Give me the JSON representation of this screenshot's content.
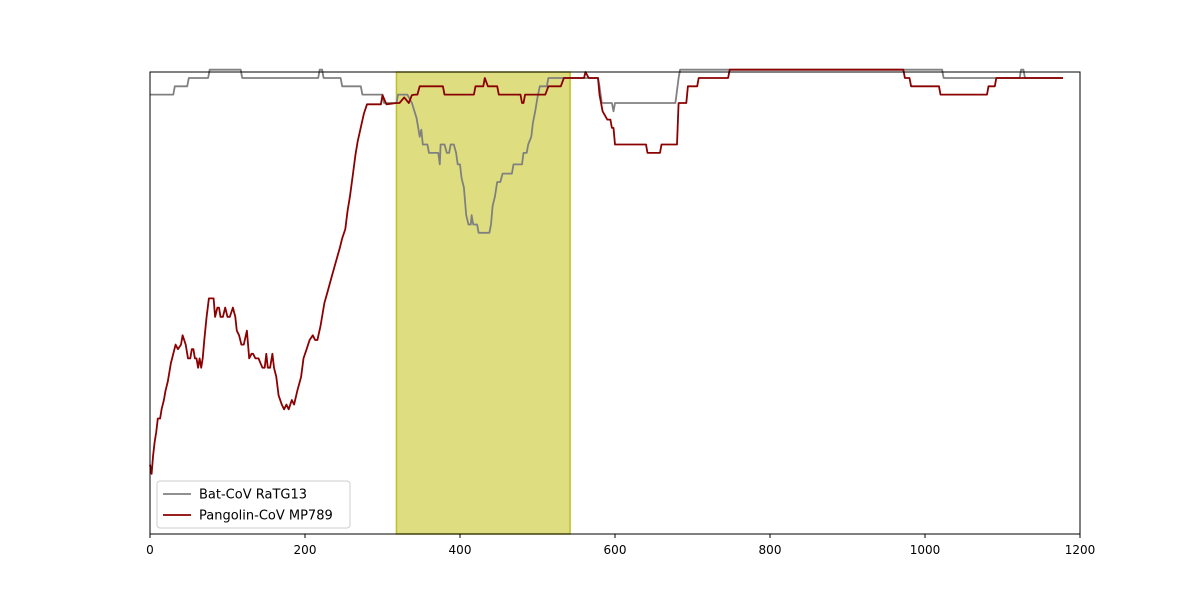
{
  "chart_data": {
    "type": "line",
    "title": "",
    "xlabel": "",
    "ylabel": "",
    "xlim": [
      0,
      1200
    ],
    "ylim": [
      0,
      1
    ],
    "xticks": [
      0,
      200,
      400,
      600,
      800,
      1000,
      1200
    ],
    "yticks_visible": false,
    "grid": false,
    "legend_position": "lower-left",
    "highlight": {
      "x_start": 318,
      "x_end": 542,
      "color": "#dede80",
      "edge_color": "#bfbf2a"
    },
    "series": [
      {
        "name": "Bat-CoV RaTG13",
        "color": "#808080",
        "points": [
          [
            0,
            0.951
          ],
          [
            30,
            0.951
          ],
          [
            32,
            0.969
          ],
          [
            48,
            0.969
          ],
          [
            50,
            0.987
          ],
          [
            75,
            0.987
          ],
          [
            77,
            1.005
          ],
          [
            117,
            1.005
          ],
          [
            119,
            0.987
          ],
          [
            217,
            0.987
          ],
          [
            219,
            1.005
          ],
          [
            222,
            1.005
          ],
          [
            224,
            0.987
          ],
          [
            246,
            0.987
          ],
          [
            248,
            0.969
          ],
          [
            272,
            0.969
          ],
          [
            274,
            0.951
          ],
          [
            300,
            0.951
          ],
          [
            302,
            0.933
          ],
          [
            318,
            0.933
          ],
          [
            320,
            0.951
          ],
          [
            332,
            0.951
          ],
          [
            338,
            0.933
          ],
          [
            344,
            0.9
          ],
          [
            348,
            0.86
          ],
          [
            350,
            0.875
          ],
          [
            352,
            0.843
          ],
          [
            358,
            0.843
          ],
          [
            360,
            0.825
          ],
          [
            368,
            0.825
          ],
          [
            372,
            0.825
          ],
          [
            374,
            0.8
          ],
          [
            375,
            0.843
          ],
          [
            378,
            0.843
          ],
          [
            380,
            0.843
          ],
          [
            383,
            0.825
          ],
          [
            386,
            0.825
          ],
          [
            388,
            0.843
          ],
          [
            392,
            0.843
          ],
          [
            395,
            0.825
          ],
          [
            397,
            0.8
          ],
          [
            400,
            0.8
          ],
          [
            402,
            0.77
          ],
          [
            405,
            0.75
          ],
          [
            408,
            0.69
          ],
          [
            411,
            0.67
          ],
          [
            414,
            0.67
          ],
          [
            415,
            0.69
          ],
          [
            417,
            0.67
          ],
          [
            420,
            0.67
          ],
          [
            422,
            0.67
          ],
          [
            424,
            0.652
          ],
          [
            438,
            0.652
          ],
          [
            440,
            0.67
          ],
          [
            442,
            0.71
          ],
          [
            445,
            0.73
          ],
          [
            448,
            0.762
          ],
          [
            452,
            0.762
          ],
          [
            455,
            0.78
          ],
          [
            460,
            0.78
          ],
          [
            463,
            0.78
          ],
          [
            465,
            0.78
          ],
          [
            467,
            0.78
          ],
          [
            469,
            0.8
          ],
          [
            480,
            0.8
          ],
          [
            482,
            0.825
          ],
          [
            486,
            0.825
          ],
          [
            488,
            0.843
          ],
          [
            492,
            0.86
          ],
          [
            494,
            0.89
          ],
          [
            497,
            0.915
          ],
          [
            500,
            0.945
          ],
          [
            503,
            0.969
          ],
          [
            512,
            0.969
          ],
          [
            514,
            0.987
          ],
          [
            560,
            0.987
          ],
          [
            578,
            0.987
          ],
          [
            580,
            0.969
          ],
          [
            583,
            0.933
          ],
          [
            596,
            0.933
          ],
          [
            598,
            0.915
          ],
          [
            600,
            0.933
          ],
          [
            640,
            0.933
          ],
          [
            660,
            0.933
          ],
          [
            678,
            0.933
          ],
          [
            682,
            0.987
          ],
          [
            684,
            1.005
          ],
          [
            1022,
            1.005
          ],
          [
            1024,
            0.987
          ],
          [
            1122,
            0.987
          ],
          [
            1124,
            1.005
          ],
          [
            1127,
            1.005
          ],
          [
            1129,
            0.987
          ],
          [
            1178,
            0.987
          ]
        ]
      },
      {
        "name": "Pangolin-CoV MP789",
        "color": "#8b0000",
        "points": [
          [
            0,
            0.15
          ],
          [
            2,
            0.13
          ],
          [
            4,
            0.17
          ],
          [
            6,
            0.2
          ],
          [
            8,
            0.22
          ],
          [
            10,
            0.25
          ],
          [
            13,
            0.25
          ],
          [
            15,
            0.27
          ],
          [
            18,
            0.29
          ],
          [
            20,
            0.31
          ],
          [
            23,
            0.33
          ],
          [
            27,
            0.37
          ],
          [
            33,
            0.41
          ],
          [
            36,
            0.4
          ],
          [
            40,
            0.41
          ],
          [
            42,
            0.43
          ],
          [
            46,
            0.41
          ],
          [
            49,
            0.38
          ],
          [
            52,
            0.38
          ],
          [
            54,
            0.4
          ],
          [
            56,
            0.4
          ],
          [
            58,
            0.38
          ],
          [
            60,
            0.38
          ],
          [
            62,
            0.36
          ],
          [
            64,
            0.38
          ],
          [
            66,
            0.36
          ],
          [
            68,
            0.38
          ],
          [
            70,
            0.42
          ],
          [
            73,
            0.47
          ],
          [
            76,
            0.51
          ],
          [
            80,
            0.51
          ],
          [
            82,
            0.51
          ],
          [
            84,
            0.47
          ],
          [
            87,
            0.49
          ],
          [
            89,
            0.49
          ],
          [
            91,
            0.47
          ],
          [
            94,
            0.47
          ],
          [
            97,
            0.49
          ],
          [
            100,
            0.47
          ],
          [
            103,
            0.47
          ],
          [
            107,
            0.49
          ],
          [
            110,
            0.47
          ],
          [
            112,
            0.44
          ],
          [
            115,
            0.43
          ],
          [
            118,
            0.41
          ],
          [
            121,
            0.41
          ],
          [
            125,
            0.44
          ],
          [
            128,
            0.38
          ],
          [
            131,
            0.39
          ],
          [
            133,
            0.39
          ],
          [
            136,
            0.38
          ],
          [
            140,
            0.38
          ],
          [
            145,
            0.36
          ],
          [
            148,
            0.36
          ],
          [
            150,
            0.39
          ],
          [
            152,
            0.36
          ],
          [
            155,
            0.36
          ],
          [
            158,
            0.39
          ],
          [
            160,
            0.36
          ],
          [
            163,
            0.34
          ],
          [
            166,
            0.3
          ],
          [
            170,
            0.28
          ],
          [
            173,
            0.27
          ],
          [
            176,
            0.28
          ],
          [
            179,
            0.27
          ],
          [
            183,
            0.29
          ],
          [
            186,
            0.28
          ],
          [
            190,
            0.31
          ],
          [
            195,
            0.34
          ],
          [
            198,
            0.38
          ],
          [
            202,
            0.4
          ],
          [
            206,
            0.42
          ],
          [
            210,
            0.43
          ],
          [
            213,
            0.42
          ],
          [
            216,
            0.42
          ],
          [
            220,
            0.45
          ],
          [
            225,
            0.5
          ],
          [
            230,
            0.53
          ],
          [
            235,
            0.56
          ],
          [
            240,
            0.59
          ],
          [
            245,
            0.62
          ],
          [
            248,
            0.64
          ],
          [
            252,
            0.66
          ],
          [
            255,
            0.7
          ],
          [
            258,
            0.73
          ],
          [
            262,
            0.78
          ],
          [
            265,
            0.82
          ],
          [
            268,
            0.85
          ],
          [
            272,
            0.88
          ],
          [
            276,
            0.91
          ],
          [
            280,
            0.93
          ],
          [
            285,
            0.93
          ],
          [
            290,
            0.93
          ],
          [
            295,
            0.93
          ],
          [
            298,
            0.93
          ],
          [
            300,
            0.95
          ],
          [
            305,
            0.93
          ],
          [
            318,
            0.933
          ],
          [
            322,
            0.933
          ],
          [
            328,
            0.945
          ],
          [
            334,
            0.933
          ],
          [
            338,
            0.95
          ],
          [
            342,
            0.951
          ],
          [
            345,
            0.951
          ],
          [
            348,
            0.969
          ],
          [
            378,
            0.969
          ],
          [
            380,
            0.951
          ],
          [
            400,
            0.951
          ],
          [
            418,
            0.951
          ],
          [
            420,
            0.969
          ],
          [
            430,
            0.969
          ],
          [
            432,
            0.987
          ],
          [
            436,
            0.969
          ],
          [
            448,
            0.969
          ],
          [
            450,
            0.951
          ],
          [
            460,
            0.951
          ],
          [
            470,
            0.951
          ],
          [
            478,
            0.951
          ],
          [
            480,
            0.933
          ],
          [
            482,
            0.933
          ],
          [
            484,
            0.951
          ],
          [
            510,
            0.951
          ],
          [
            514,
            0.969
          ],
          [
            530,
            0.969
          ],
          [
            534,
            0.987
          ],
          [
            560,
            0.987
          ],
          [
            562,
            1.0
          ],
          [
            566,
            0.987
          ],
          [
            578,
            0.987
          ],
          [
            580,
            0.951
          ],
          [
            584,
            0.915
          ],
          [
            590,
            0.897
          ],
          [
            594,
            0.897
          ],
          [
            596,
            0.879
          ],
          [
            598,
            0.879
          ],
          [
            600,
            0.843
          ],
          [
            640,
            0.843
          ],
          [
            642,
            0.825
          ],
          [
            658,
            0.825
          ],
          [
            660,
            0.843
          ],
          [
            680,
            0.843
          ],
          [
            682,
            0.933
          ],
          [
            692,
            0.933
          ],
          [
            694,
            0.969
          ],
          [
            706,
            0.969
          ],
          [
            708,
            0.987
          ],
          [
            746,
            0.987
          ],
          [
            748,
            1.005
          ],
          [
            972,
            1.005
          ],
          [
            974,
            0.987
          ],
          [
            980,
            0.987
          ],
          [
            982,
            0.969
          ],
          [
            1018,
            0.969
          ],
          [
            1020,
            0.951
          ],
          [
            1080,
            0.951
          ],
          [
            1082,
            0.969
          ],
          [
            1090,
            0.969
          ],
          [
            1092,
            0.987
          ],
          [
            1178,
            0.987
          ]
        ]
      }
    ]
  }
}
